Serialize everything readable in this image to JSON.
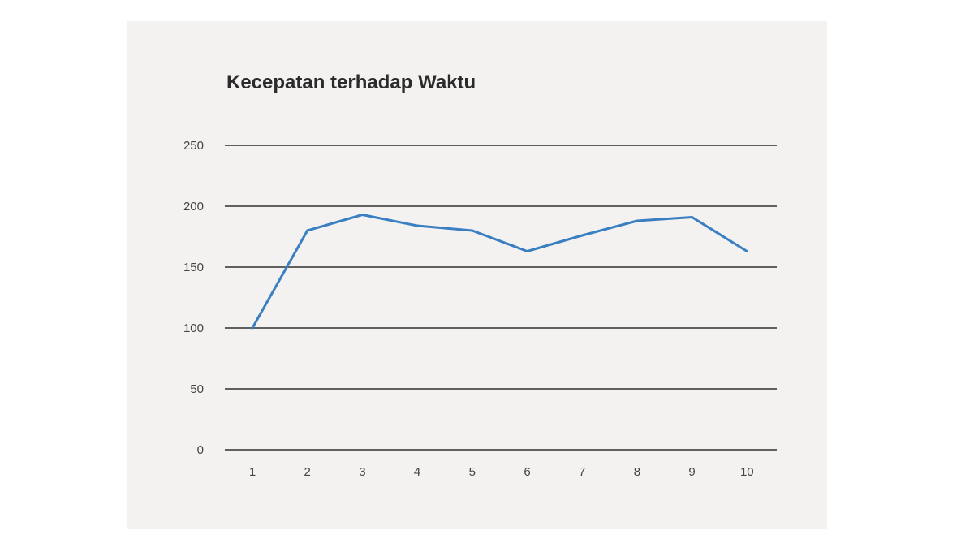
{
  "chart_data": {
    "type": "line",
    "title": "Kecepatan terhadap Waktu",
    "xlabel": "",
    "ylabel": "",
    "categories": [
      "1",
      "2",
      "3",
      "4",
      "5",
      "6",
      "7",
      "8",
      "9",
      "10"
    ],
    "x": [
      1,
      2,
      3,
      4,
      5,
      6,
      7,
      8,
      9,
      10
    ],
    "series": [
      {
        "values": [
          100,
          180,
          193,
          184,
          180,
          163,
          176,
          188,
          191,
          163
        ],
        "color": "#3a7fc1"
      }
    ],
    "ylim": [
      0,
      250
    ],
    "yticks": [
      "0",
      "50",
      "100",
      "150",
      "200",
      "250"
    ],
    "grid": true,
    "legend": "none",
    "colors": {
      "background": "#f3f2f1",
      "gridline": "#2f2f2f",
      "line": "#3a7fc1",
      "text": "#444444"
    }
  }
}
